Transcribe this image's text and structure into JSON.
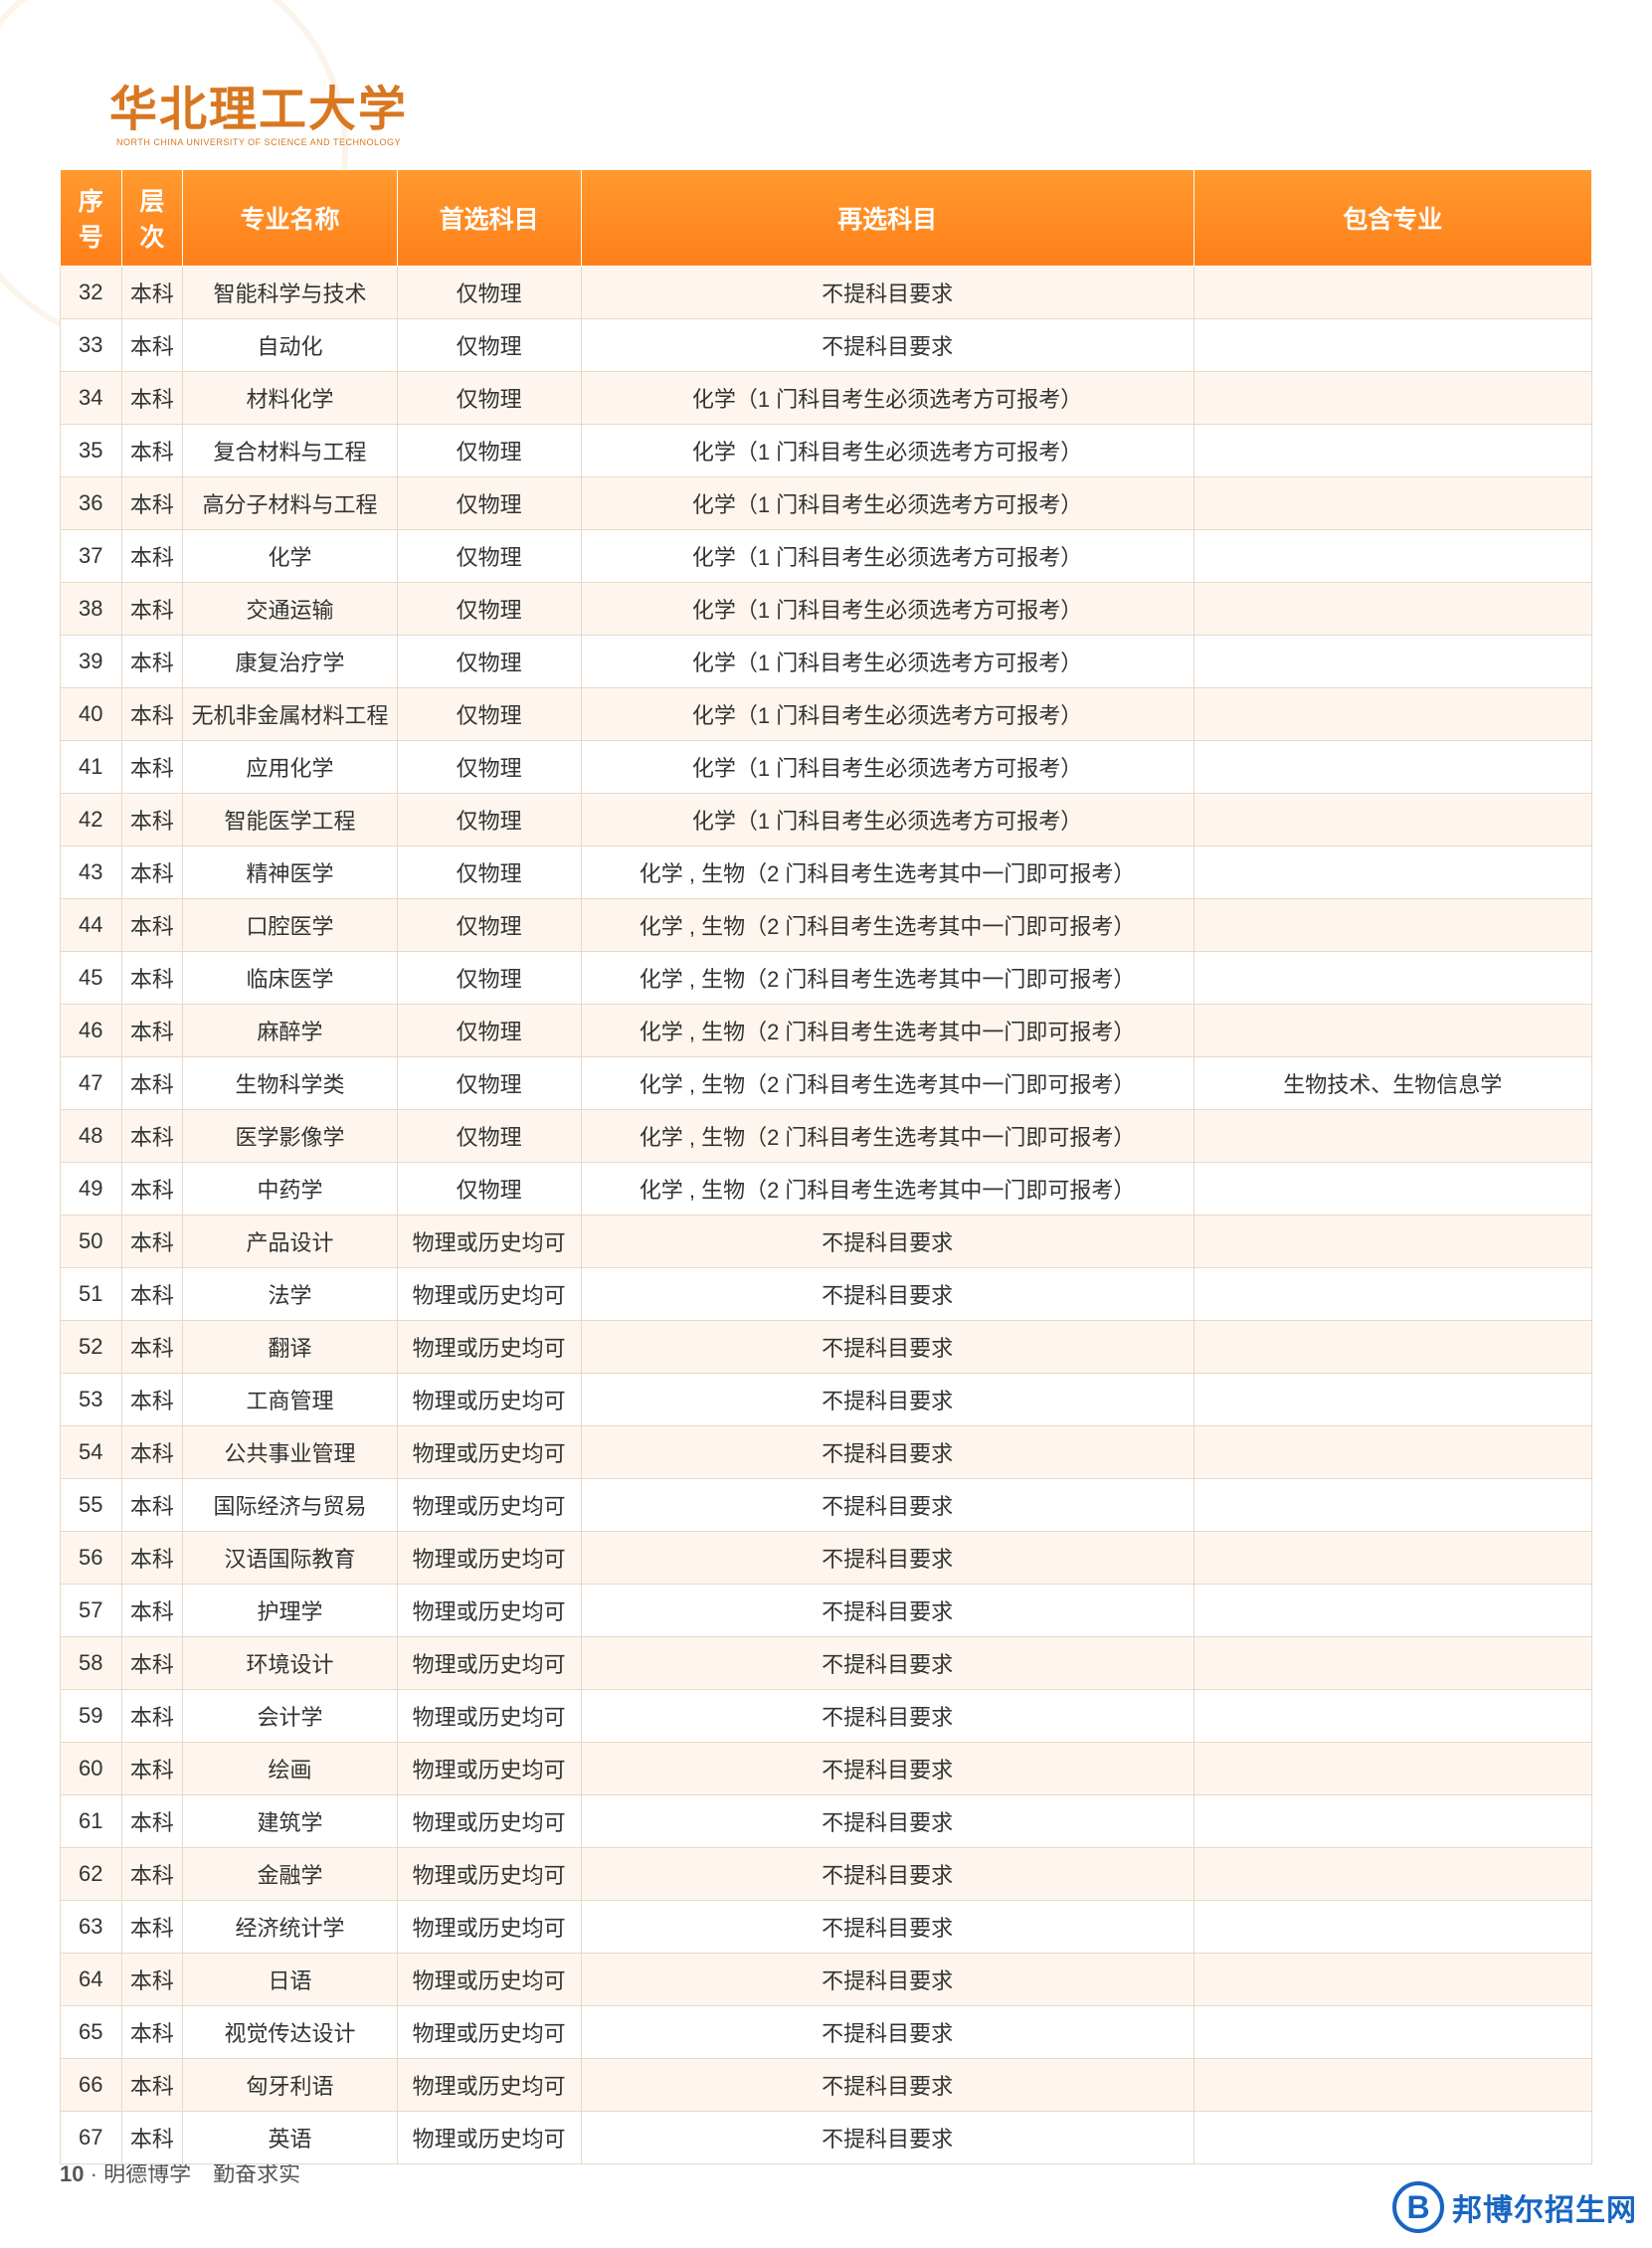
{
  "document": {
    "university_name": "华北理工大学",
    "university_name_en": "NORTH CHINA UNIVERSITY OF SCIENCE AND TECHNOLOGY",
    "page_number": "10",
    "motto": "明德博学　勤奋求实",
    "brand_logo_letter": "B",
    "brand_text": "邦博尔招生网"
  },
  "table": {
    "headers": {
      "seq": "序号",
      "level": "层次",
      "major": "专业名称",
      "first_subject": "首选科目",
      "second_subject": "再选科目",
      "include": "包含专业"
    },
    "column_widths": [
      "4%",
      "4%",
      "14%",
      "12%",
      "40%",
      "26%"
    ],
    "header_bg_start": "#ff9a2e",
    "header_bg_end": "#ff7f1a",
    "header_text_color": "#ffffff",
    "row_odd_bg": "#fef6ee",
    "row_even_bg": "#ffffff",
    "border_color": "#e8d8c8",
    "cell_text_color": "#333333",
    "header_fontsize": 25,
    "cell_fontsize": 22,
    "rows": [
      {
        "seq": "32",
        "level": "本科",
        "major": "智能科学与技术",
        "first": "仅物理",
        "second": "不提科目要求",
        "include": ""
      },
      {
        "seq": "33",
        "level": "本科",
        "major": "自动化",
        "first": "仅物理",
        "second": "不提科目要求",
        "include": ""
      },
      {
        "seq": "34",
        "level": "本科",
        "major": "材料化学",
        "first": "仅物理",
        "second": "化学（1 门科目考生必须选考方可报考）",
        "include": ""
      },
      {
        "seq": "35",
        "level": "本科",
        "major": "复合材料与工程",
        "first": "仅物理",
        "second": "化学（1 门科目考生必须选考方可报考）",
        "include": ""
      },
      {
        "seq": "36",
        "level": "本科",
        "major": "高分子材料与工程",
        "first": "仅物理",
        "second": "化学（1 门科目考生必须选考方可报考）",
        "include": ""
      },
      {
        "seq": "37",
        "level": "本科",
        "major": "化学",
        "first": "仅物理",
        "second": "化学（1 门科目考生必须选考方可报考）",
        "include": ""
      },
      {
        "seq": "38",
        "level": "本科",
        "major": "交通运输",
        "first": "仅物理",
        "second": "化学（1 门科目考生必须选考方可报考）",
        "include": ""
      },
      {
        "seq": "39",
        "level": "本科",
        "major": "康复治疗学",
        "first": "仅物理",
        "second": "化学（1 门科目考生必须选考方可报考）",
        "include": ""
      },
      {
        "seq": "40",
        "level": "本科",
        "major": "无机非金属材料工程",
        "first": "仅物理",
        "second": "化学（1 门科目考生必须选考方可报考）",
        "include": ""
      },
      {
        "seq": "41",
        "level": "本科",
        "major": "应用化学",
        "first": "仅物理",
        "second": "化学（1 门科目考生必须选考方可报考）",
        "include": ""
      },
      {
        "seq": "42",
        "level": "本科",
        "major": "智能医学工程",
        "first": "仅物理",
        "second": "化学（1 门科目考生必须选考方可报考）",
        "include": ""
      },
      {
        "seq": "43",
        "level": "本科",
        "major": "精神医学",
        "first": "仅物理",
        "second": "化学 , 生物（2 门科目考生选考其中一门即可报考）",
        "include": ""
      },
      {
        "seq": "44",
        "level": "本科",
        "major": "口腔医学",
        "first": "仅物理",
        "second": "化学 , 生物（2 门科目考生选考其中一门即可报考）",
        "include": ""
      },
      {
        "seq": "45",
        "level": "本科",
        "major": "临床医学",
        "first": "仅物理",
        "second": "化学 , 生物（2 门科目考生选考其中一门即可报考）",
        "include": ""
      },
      {
        "seq": "46",
        "level": "本科",
        "major": "麻醉学",
        "first": "仅物理",
        "second": "化学 , 生物（2 门科目考生选考其中一门即可报考）",
        "include": ""
      },
      {
        "seq": "47",
        "level": "本科",
        "major": "生物科学类",
        "first": "仅物理",
        "second": "化学 , 生物（2 门科目考生选考其中一门即可报考）",
        "include": "生物技术、生物信息学"
      },
      {
        "seq": "48",
        "level": "本科",
        "major": "医学影像学",
        "first": "仅物理",
        "second": "化学 , 生物（2 门科目考生选考其中一门即可报考）",
        "include": ""
      },
      {
        "seq": "49",
        "level": "本科",
        "major": "中药学",
        "first": "仅物理",
        "second": "化学 , 生物（2 门科目考生选考其中一门即可报考）",
        "include": ""
      },
      {
        "seq": "50",
        "level": "本科",
        "major": "产品设计",
        "first": "物理或历史均可",
        "second": "不提科目要求",
        "include": ""
      },
      {
        "seq": "51",
        "level": "本科",
        "major": "法学",
        "first": "物理或历史均可",
        "second": "不提科目要求",
        "include": ""
      },
      {
        "seq": "52",
        "level": "本科",
        "major": "翻译",
        "first": "物理或历史均可",
        "second": "不提科目要求",
        "include": ""
      },
      {
        "seq": "53",
        "level": "本科",
        "major": "工商管理",
        "first": "物理或历史均可",
        "second": "不提科目要求",
        "include": ""
      },
      {
        "seq": "54",
        "level": "本科",
        "major": "公共事业管理",
        "first": "物理或历史均可",
        "second": "不提科目要求",
        "include": ""
      },
      {
        "seq": "55",
        "level": "本科",
        "major": "国际经济与贸易",
        "first": "物理或历史均可",
        "second": "不提科目要求",
        "include": ""
      },
      {
        "seq": "56",
        "level": "本科",
        "major": "汉语国际教育",
        "first": "物理或历史均可",
        "second": "不提科目要求",
        "include": ""
      },
      {
        "seq": "57",
        "level": "本科",
        "major": "护理学",
        "first": "物理或历史均可",
        "second": "不提科目要求",
        "include": ""
      },
      {
        "seq": "58",
        "level": "本科",
        "major": "环境设计",
        "first": "物理或历史均可",
        "second": "不提科目要求",
        "include": ""
      },
      {
        "seq": "59",
        "level": "本科",
        "major": "会计学",
        "first": "物理或历史均可",
        "second": "不提科目要求",
        "include": ""
      },
      {
        "seq": "60",
        "level": "本科",
        "major": "绘画",
        "first": "物理或历史均可",
        "second": "不提科目要求",
        "include": ""
      },
      {
        "seq": "61",
        "level": "本科",
        "major": "建筑学",
        "first": "物理或历史均可",
        "second": "不提科目要求",
        "include": ""
      },
      {
        "seq": "62",
        "level": "本科",
        "major": "金融学",
        "first": "物理或历史均可",
        "second": "不提科目要求",
        "include": ""
      },
      {
        "seq": "63",
        "level": "本科",
        "major": "经济统计学",
        "first": "物理或历史均可",
        "second": "不提科目要求",
        "include": ""
      },
      {
        "seq": "64",
        "level": "本科",
        "major": "日语",
        "first": "物理或历史均可",
        "second": "不提科目要求",
        "include": ""
      },
      {
        "seq": "65",
        "level": "本科",
        "major": "视觉传达设计",
        "first": "物理或历史均可",
        "second": "不提科目要求",
        "include": ""
      },
      {
        "seq": "66",
        "level": "本科",
        "major": "匈牙利语",
        "first": "物理或历史均可",
        "second": "不提科目要求",
        "include": ""
      },
      {
        "seq": "67",
        "level": "本科",
        "major": "英语",
        "first": "物理或历史均可",
        "second": "不提科目要求",
        "include": ""
      }
    ]
  },
  "colors": {
    "brand_blue": "#1765c1",
    "logo_orange": "#d97720",
    "watermark_orange": "#e8a050"
  }
}
